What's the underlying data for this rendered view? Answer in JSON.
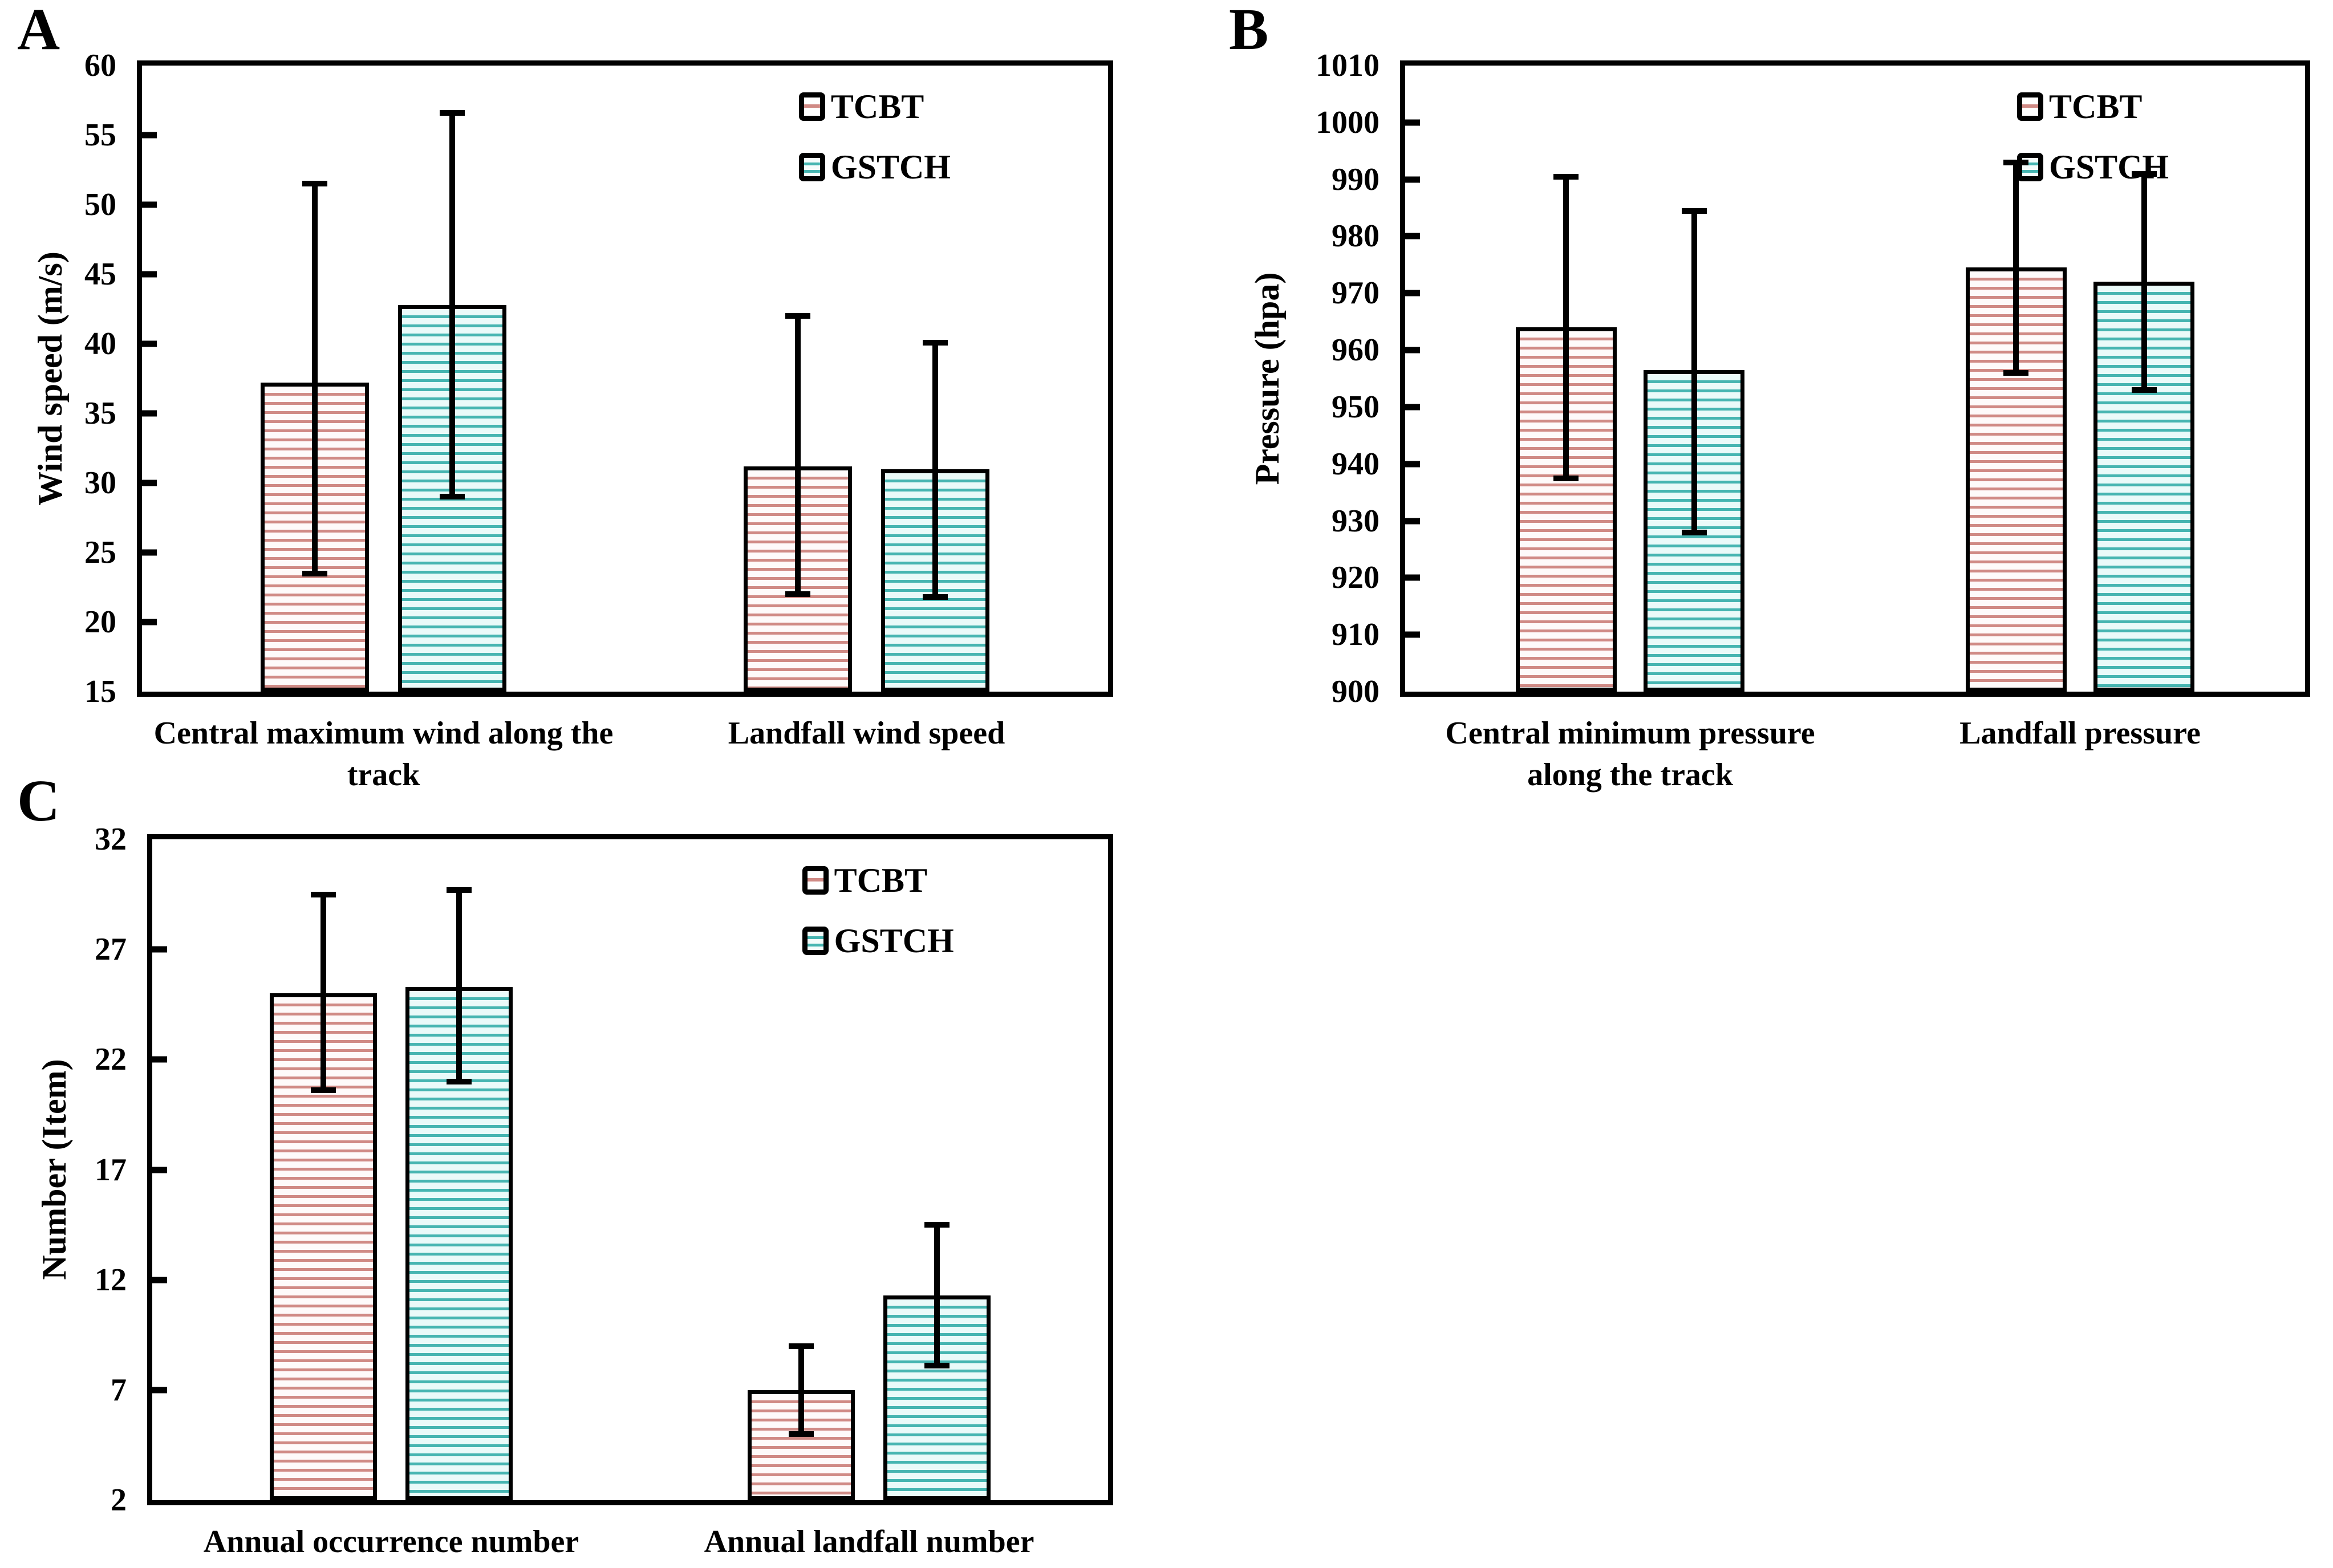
{
  "figure": {
    "background": "#ffffff",
    "series_names": [
      "TCBT",
      "GSTCH"
    ]
  },
  "colors": {
    "tcbt_stripe": "#d08a85",
    "tcbt_fill": "#fefafa",
    "gstch_stripe": "#46b5b1",
    "gstch_fill": "#eafaf9",
    "axis": "#000000"
  },
  "chart_data": [
    {
      "panel_label": "A",
      "type": "bar",
      "title": "",
      "ylabel": "Wind speed (m/s)",
      "ylim": [
        15,
        60
      ],
      "ytick_step": 5,
      "grid": false,
      "legend_position": "top-right",
      "categories": [
        "Central maximum wind along the track",
        "Landfall wind speed"
      ],
      "series": [
        {
          "name": "TCBT",
          "values": [
            37.2,
            31.2
          ],
          "err_low": [
            23.5,
            22.0
          ],
          "err_high": [
            51.5,
            42.0
          ]
        },
        {
          "name": "GSTCH",
          "values": [
            42.8,
            31.0
          ],
          "err_low": [
            29.0,
            21.8
          ],
          "err_high": [
            56.6,
            40.1
          ]
        }
      ]
    },
    {
      "panel_label": "B",
      "type": "bar",
      "title": "",
      "ylabel": "Pressure (hpa)",
      "ylim": [
        900,
        1010
      ],
      "ytick_step": 10,
      "grid": false,
      "legend_position": "top-right",
      "categories": [
        "Central minimum pressure along the track",
        "Landfall pressure"
      ],
      "series": [
        {
          "name": "TCBT",
          "values": [
            964.0,
            974.5
          ],
          "err_low": [
            937.5,
            956.0
          ],
          "err_high": [
            990.5,
            993.0
          ]
        },
        {
          "name": "GSTCH",
          "values": [
            956.5,
            972.0
          ],
          "err_low": [
            928.0,
            953.0
          ],
          "err_high": [
            984.5,
            991.0
          ]
        }
      ]
    },
    {
      "panel_label": "C",
      "type": "bar",
      "title": "",
      "ylabel": "Number (Item)",
      "ylim": [
        2,
        32
      ],
      "ytick_step": 5,
      "grid": false,
      "legend_position": "top-right",
      "categories": [
        "Annual occurrence number",
        "Annual landfall number"
      ],
      "series": [
        {
          "name": "TCBT",
          "values": [
            25.0,
            7.0
          ],
          "err_low": [
            20.6,
            5.0
          ],
          "err_high": [
            29.5,
            9.0
          ]
        },
        {
          "name": "GSTCH",
          "values": [
            25.3,
            11.3
          ],
          "err_low": [
            21.0,
            8.1
          ],
          "err_high": [
            29.7,
            14.5
          ]
        }
      ]
    }
  ]
}
